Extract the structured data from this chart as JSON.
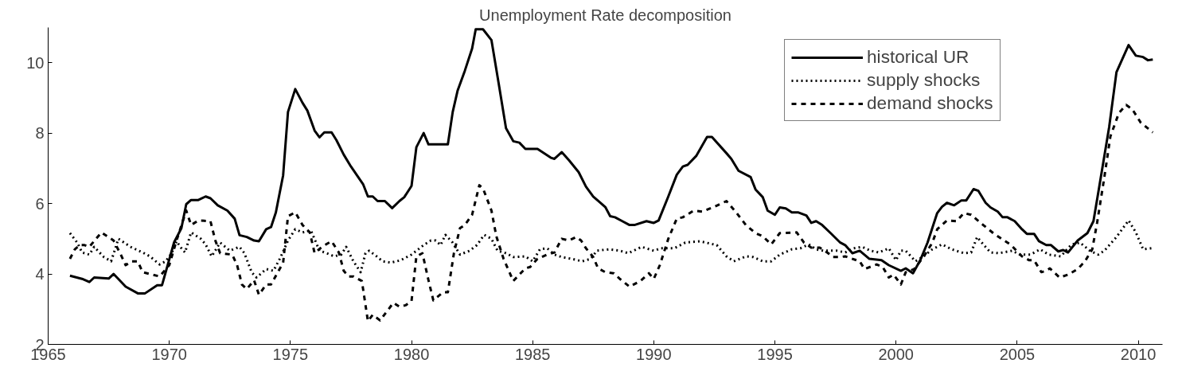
{
  "chart_data": {
    "type": "line",
    "title": "Unemployment Rate decomposition",
    "xlim": [
      1965,
      2011
    ],
    "xticks": [
      1965,
      1970,
      1975,
      1980,
      1985,
      1990,
      1995,
      2000,
      2005,
      2010
    ],
    "ylim": [
      2,
      11
    ],
    "yticks": [
      2,
      4,
      6,
      8,
      10
    ],
    "grid": false,
    "legend": "top right",
    "series": [
      {
        "name": "historical UR",
        "color": "#000000",
        "line_style": "solid",
        "x": [
          1965.9,
          1966.4,
          1966.7,
          1966.9,
          1967.5,
          1967.7,
          1968.2,
          1968.7,
          1969.0,
          1969.5,
          1969.7,
          1970.2,
          1970.5,
          1970.7,
          1970.9,
          1971.2,
          1971.5,
          1971.7,
          1972.0,
          1972.4,
          1972.7,
          1972.9,
          1973.2,
          1973.5,
          1973.7,
          1974.0,
          1974.2,
          1974.4,
          1974.7,
          1974.9,
          1975.2,
          1975.5,
          1975.7,
          1976.0,
          1976.2,
          1976.4,
          1976.7,
          1976.9,
          1977.2,
          1977.5,
          1978.0,
          1978.2,
          1978.4,
          1978.6,
          1978.9,
          1979.2,
          1979.5,
          1979.7,
          1980.0,
          1980.2,
          1980.5,
          1980.7,
          1981.5,
          1981.7,
          1981.9,
          1982.2,
          1982.5,
          1982.65,
          1982.95,
          1983.3,
          1983.6,
          1983.9,
          1984.2,
          1984.45,
          1984.7,
          1985.2,
          1985.4,
          1985.75,
          1985.9,
          1986.2,
          1986.5,
          1986.9,
          1987.2,
          1987.5,
          1988.0,
          1988.2,
          1988.4,
          1988.7,
          1989.0,
          1989.2,
          1989.7,
          1990.0,
          1990.2,
          1990.6,
          1990.95,
          1991.2,
          1991.4,
          1991.75,
          1992.2,
          1992.4,
          1993.0,
          1993.2,
          1993.5,
          1994.0,
          1994.2,
          1994.5,
          1994.7,
          1995.0,
          1995.2,
          1995.45,
          1995.7,
          1995.95,
          1996.3,
          1996.5,
          1996.7,
          1996.95,
          1997.3,
          1997.7,
          1997.9,
          1998.2,
          1998.5,
          1998.9,
          1999.4,
          1999.7,
          2000.2,
          2000.4,
          2000.7,
          2001.0,
          2001.3,
          2001.7,
          2001.9,
          2002.1,
          2002.4,
          2002.7,
          2002.9,
          2003.2,
          2003.4,
          2003.7,
          2003.9,
          2004.2,
          2004.4,
          2004.6,
          2004.9,
          2005.2,
          2005.4,
          2005.7,
          2005.9,
          2006.2,
          2006.4,
          2006.7,
          2006.9,
          2007.1,
          2007.5,
          2007.9,
          2008.15,
          2008.4,
          2008.8,
          2009.1,
          2009.6,
          2009.9,
          2010.2,
          2010.4,
          2010.6
        ],
        "values": [
          3.95,
          3.86,
          3.77,
          3.9,
          3.87,
          4.0,
          3.64,
          3.45,
          3.45,
          3.68,
          3.68,
          4.9,
          5.3,
          5.98,
          6.1,
          6.1,
          6.2,
          6.15,
          5.95,
          5.8,
          5.57,
          5.1,
          5.05,
          4.95,
          4.93,
          5.27,
          5.33,
          5.75,
          6.8,
          8.6,
          9.25,
          8.86,
          8.64,
          8.07,
          7.88,
          8.02,
          8.02,
          7.8,
          7.39,
          7.05,
          6.55,
          6.2,
          6.2,
          6.07,
          6.07,
          5.87,
          6.07,
          6.18,
          6.5,
          7.6,
          8.0,
          7.68,
          7.68,
          8.6,
          9.2,
          9.77,
          10.4,
          10.95,
          10.95,
          10.64,
          9.4,
          8.14,
          7.77,
          7.73,
          7.55,
          7.55,
          7.46,
          7.3,
          7.27,
          7.46,
          7.23,
          6.89,
          6.48,
          6.2,
          5.9,
          5.64,
          5.61,
          5.5,
          5.39,
          5.39,
          5.5,
          5.45,
          5.52,
          6.2,
          6.82,
          7.05,
          7.1,
          7.35,
          7.89,
          7.89,
          7.43,
          7.27,
          6.93,
          6.75,
          6.4,
          6.18,
          5.8,
          5.68,
          5.89,
          5.86,
          5.75,
          5.75,
          5.66,
          5.45,
          5.5,
          5.39,
          5.16,
          4.89,
          4.82,
          4.59,
          4.66,
          4.43,
          4.39,
          4.25,
          4.09,
          4.16,
          4.02,
          4.39,
          4.89,
          5.73,
          5.91,
          6.02,
          5.95,
          6.09,
          6.09,
          6.41,
          6.36,
          6.02,
          5.89,
          5.77,
          5.61,
          5.61,
          5.5,
          5.27,
          5.14,
          5.14,
          4.93,
          4.82,
          4.82,
          4.64,
          4.68,
          4.61,
          4.95,
          5.16,
          5.5,
          6.52,
          8.18,
          9.73,
          10.5,
          10.2,
          10.16,
          10.07,
          10.09
        ]
      },
      {
        "name": "supply shocks",
        "color": "#000000",
        "line_style": "dotted",
        "x": [
          1965.9,
          1966.2,
          1966.4,
          1966.7,
          1966.9,
          1967.3,
          1967.6,
          1967.9,
          1968.4,
          1968.9,
          1969.2,
          1969.6,
          1969.85,
          1970.1,
          1970.3,
          1970.5,
          1970.65,
          1970.9,
          1971.3,
          1971.5,
          1971.75,
          1972.1,
          1972.5,
          1972.9,
          1973.1,
          1973.4,
          1973.6,
          1974.0,
          1974.3,
          1974.6,
          1974.9,
          1975.2,
          1975.5,
          1975.85,
          1976.2,
          1976.5,
          1976.8,
          1977.1,
          1977.3,
          1977.6,
          1977.9,
          1978.1,
          1978.25,
          1978.6,
          1978.8,
          1979.15,
          1979.55,
          1980.0,
          1980.5,
          1980.8,
          1981.0,
          1981.2,
          1981.4,
          1981.7,
          1982.0,
          1982.4,
          1982.7,
          1983.0,
          1983.3,
          1983.55,
          1983.9,
          1984.2,
          1984.7,
          1985.0,
          1985.3,
          1985.6,
          1985.9,
          1986.2,
          1986.6,
          1987.05,
          1987.4,
          1987.65,
          1988.15,
          1988.6,
          1988.95,
          1989.5,
          1990.0,
          1990.3,
          1990.85,
          1991.3,
          1991.9,
          1992.6,
          1993.0,
          1993.3,
          1993.8,
          1994.1,
          1994.5,
          1994.85,
          1995.2,
          1995.7,
          1996.05,
          1996.4,
          1996.7,
          1997.0,
          1997.55,
          1997.9,
          1998.25,
          1998.6,
          1998.95,
          1999.3,
          1999.7,
          2000.0,
          2000.2,
          2000.4,
          2000.8,
          2001.1,
          2001.5,
          2001.9,
          2002.3,
          2002.8,
          2003.1,
          2003.35,
          2003.6,
          2003.9,
          2004.25,
          2004.8,
          2005.1,
          2005.55,
          2005.95,
          2006.3,
          2006.8,
          2007.25,
          2007.6,
          2008.0,
          2008.35,
          2008.6,
          2009.1,
          2009.6,
          2009.9,
          2010.2,
          2010.55
        ],
        "values": [
          5.16,
          4.89,
          4.61,
          4.55,
          4.77,
          4.48,
          4.36,
          5.0,
          4.77,
          4.61,
          4.5,
          4.27,
          4.36,
          4.59,
          4.93,
          4.73,
          4.61,
          5.18,
          5.0,
          4.84,
          4.5,
          4.89,
          4.66,
          4.77,
          4.59,
          4.05,
          3.9,
          4.14,
          4.09,
          4.48,
          4.95,
          5.27,
          5.18,
          5.23,
          4.66,
          4.59,
          4.5,
          4.55,
          4.77,
          4.36,
          4.05,
          4.59,
          4.66,
          4.48,
          4.36,
          4.32,
          4.39,
          4.55,
          4.82,
          4.95,
          4.95,
          4.82,
          5.11,
          4.89,
          4.55,
          4.66,
          4.82,
          5.11,
          5.0,
          4.66,
          4.59,
          4.48,
          4.5,
          4.36,
          4.7,
          4.73,
          4.55,
          4.48,
          4.43,
          4.36,
          4.43,
          4.66,
          4.7,
          4.66,
          4.59,
          4.77,
          4.66,
          4.73,
          4.73,
          4.89,
          4.93,
          4.82,
          4.5,
          4.36,
          4.5,
          4.48,
          4.36,
          4.36,
          4.55,
          4.7,
          4.73,
          4.84,
          4.7,
          4.66,
          4.66,
          4.61,
          4.73,
          4.77,
          4.66,
          4.61,
          4.73,
          4.39,
          4.66,
          4.66,
          4.36,
          4.48,
          4.7,
          4.84,
          4.7,
          4.59,
          4.61,
          5.05,
          4.84,
          4.61,
          4.59,
          4.66,
          4.55,
          4.55,
          4.7,
          4.55,
          4.5,
          4.84,
          4.89,
          4.66,
          4.55,
          4.66,
          5.05,
          5.52,
          5.18,
          4.7,
          4.73
        ]
      },
      {
        "name": "demand shocks",
        "color": "#000000",
        "line_style": "dashed",
        "x": [
          1965.9,
          1966.1,
          1966.3,
          1966.5,
          1966.7,
          1967.2,
          1967.7,
          1968.0,
          1968.2,
          1968.45,
          1968.7,
          1968.9,
          1969.6,
          1970.0,
          1970.3,
          1970.7,
          1970.9,
          1971.2,
          1971.7,
          1971.9,
          1972.1,
          1972.6,
          1972.8,
          1973.0,
          1973.2,
          1973.5,
          1973.7,
          1974.0,
          1974.2,
          1974.7,
          1974.9,
          1975.2,
          1975.5,
          1975.8,
          1976.0,
          1976.3,
          1976.7,
          1977.0,
          1977.2,
          1977.4,
          1977.6,
          1977.95,
          1978.2,
          1978.4,
          1978.7,
          1979.25,
          1979.5,
          1979.75,
          1980.0,
          1980.2,
          1980.45,
          1980.7,
          1980.9,
          1981.3,
          1981.5,
          1981.75,
          1982.0,
          1982.2,
          1982.5,
          1982.8,
          1982.95,
          1983.3,
          1983.5,
          1983.8,
          1984.2,
          1984.45,
          1984.7,
          1984.9,
          1985.2,
          1985.6,
          1985.9,
          1986.2,
          1986.5,
          1986.8,
          1987.0,
          1987.2,
          1987.5,
          1987.7,
          1988.0,
          1988.35,
          1988.6,
          1989.0,
          1989.45,
          1989.8,
          1990.0,
          1990.25,
          1990.6,
          1990.95,
          1991.2,
          1991.65,
          1992.0,
          1992.5,
          1993.0,
          1993.4,
          1993.8,
          1994.2,
          1994.5,
          1994.85,
          1995.2,
          1995.9,
          1996.2,
          1996.5,
          1996.85,
          1997.2,
          1997.4,
          1997.7,
          1997.9,
          1998.5,
          1998.7,
          1999.2,
          1999.45,
          1999.7,
          1999.9,
          2000.2,
          2000.4,
          2000.75,
          2001.15,
          2001.5,
          2001.7,
          2002.1,
          2002.5,
          2002.8,
          2003.1,
          2003.6,
          2004.05,
          2004.75,
          2005.2,
          2005.5,
          2005.7,
          2006.0,
          2006.2,
          2006.35,
          2006.75,
          2007.1,
          2007.5,
          2007.8,
          2008.1,
          2008.3,
          2008.6,
          2008.85,
          2009.2,
          2009.5,
          2009.75,
          2010.1,
          2010.6
        ],
        "values": [
          4.43,
          4.7,
          4.82,
          4.82,
          4.77,
          5.18,
          4.95,
          4.55,
          4.25,
          4.36,
          4.36,
          4.05,
          3.93,
          4.25,
          4.95,
          5.8,
          5.39,
          5.52,
          5.5,
          4.95,
          4.59,
          4.55,
          4.25,
          3.7,
          3.57,
          3.82,
          3.41,
          3.7,
          3.7,
          4.32,
          5.64,
          5.75,
          5.39,
          5.18,
          4.59,
          4.77,
          4.93,
          4.61,
          4.09,
          3.93,
          3.93,
          3.8,
          2.66,
          2.84,
          2.68,
          3.18,
          3.07,
          3.11,
          3.23,
          4.5,
          4.59,
          3.82,
          3.25,
          3.48,
          3.48,
          4.59,
          5.3,
          5.39,
          5.68,
          6.52,
          6.43,
          5.8,
          5.07,
          4.43,
          3.8,
          3.98,
          4.16,
          4.2,
          4.43,
          4.55,
          4.61,
          5.0,
          4.95,
          5.05,
          4.95,
          4.73,
          4.48,
          4.16,
          4.05,
          4.02,
          3.86,
          3.64,
          3.8,
          4.02,
          3.86,
          4.25,
          5.0,
          5.57,
          5.61,
          5.8,
          5.77,
          5.91,
          6.07,
          5.75,
          5.39,
          5.16,
          5.07,
          4.84,
          5.16,
          5.18,
          4.89,
          4.75,
          4.75,
          4.59,
          4.48,
          4.48,
          4.5,
          4.36,
          4.14,
          4.27,
          4.2,
          3.9,
          3.98,
          3.7,
          4.05,
          4.14,
          4.5,
          4.89,
          5.27,
          5.52,
          5.5,
          5.73,
          5.68,
          5.39,
          5.14,
          4.82,
          4.5,
          4.39,
          4.39,
          4.05,
          4.09,
          4.16,
          3.9,
          3.98,
          4.14,
          4.36,
          4.7,
          5.45,
          6.75,
          7.91,
          8.57,
          8.8,
          8.68,
          8.3,
          8.02
        ]
      }
    ]
  }
}
